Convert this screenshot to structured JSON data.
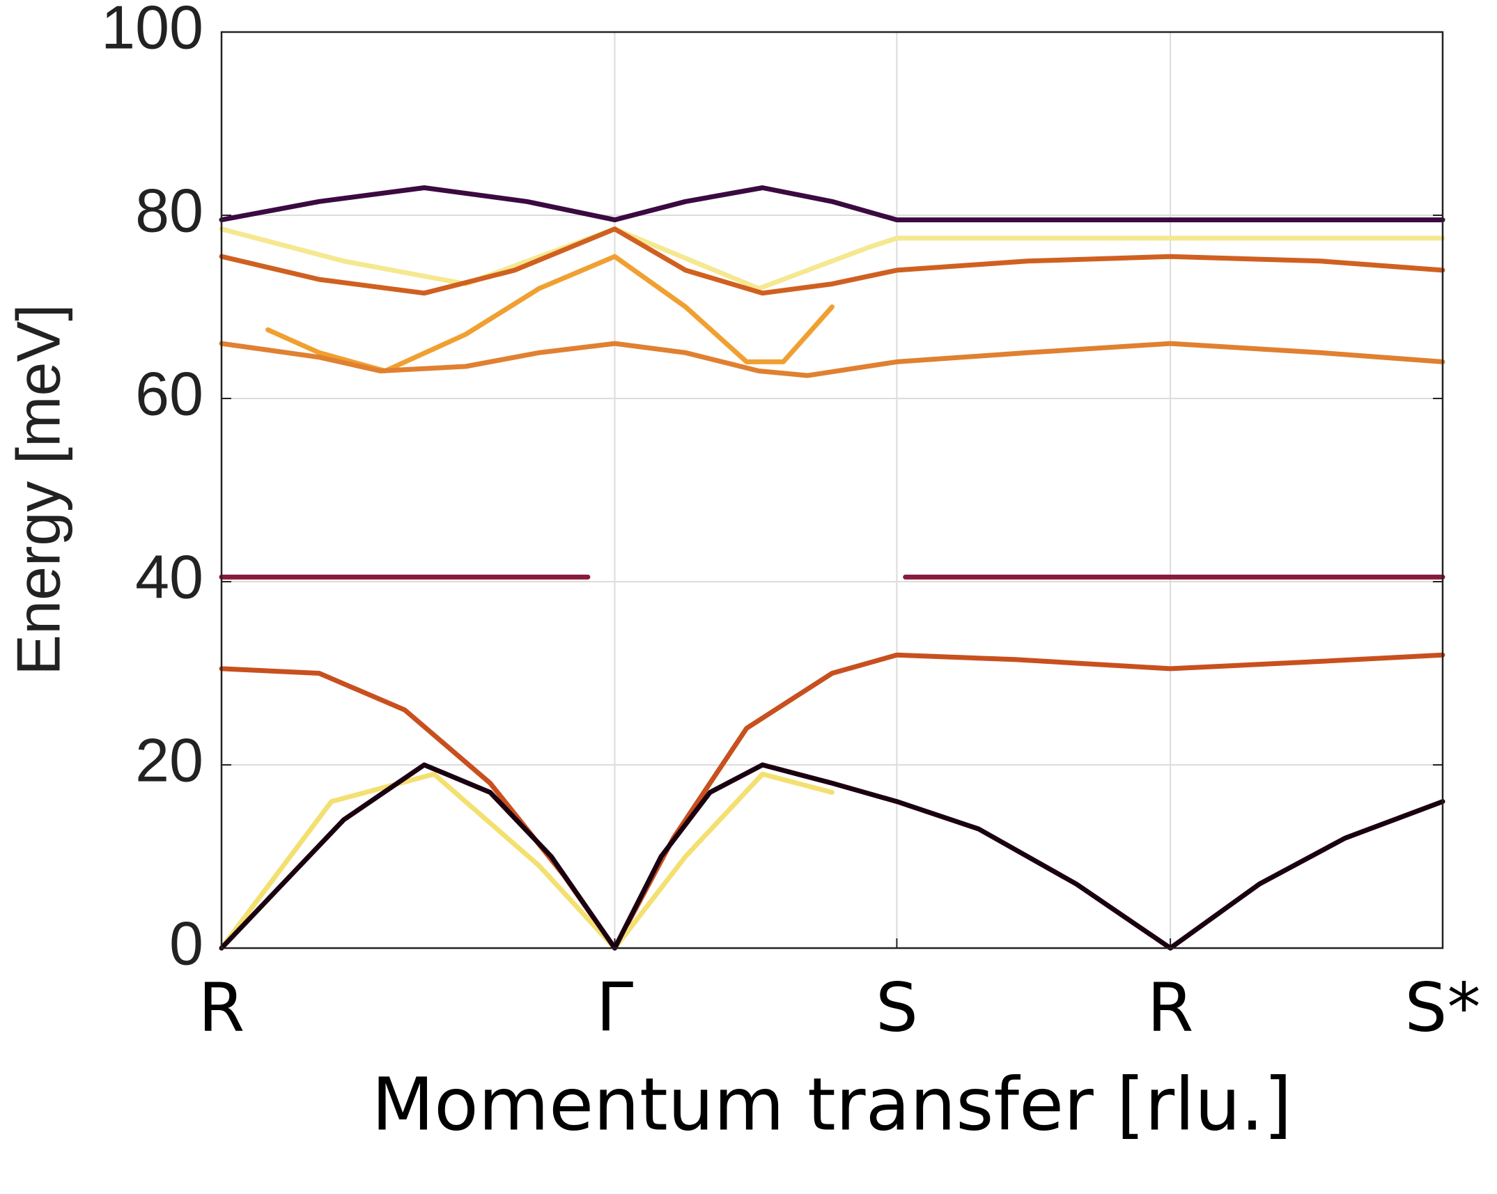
{
  "chart_data": {
    "type": "line",
    "xlabel": "Momentum transfer [rlu.]",
    "ylabel": "Energy [meV]",
    "xlim": [
      0,
      1
    ],
    "ylim": [
      0,
      100
    ],
    "yticks": [
      0,
      20,
      40,
      60,
      80,
      100
    ],
    "xticks": [
      {
        "value": 0,
        "label": "R"
      },
      {
        "value": 0.322,
        "label": "Γ"
      },
      {
        "value": 0.553,
        "label": "S"
      },
      {
        "value": 0.777,
        "label": "R"
      },
      {
        "value": 1,
        "label": "S*"
      }
    ],
    "grid": true,
    "series": [
      {
        "color": "#c8501e",
        "x": [
          0,
          0.08,
          0.15,
          0.22,
          0.28,
          0.322,
          0.37,
          0.43,
          0.5,
          0.553,
          0.65,
          0.777,
          0.9,
          1
        ],
        "values": [
          30.5,
          30,
          26,
          18,
          8,
          0,
          12,
          24,
          30,
          32,
          31.5,
          30.5,
          31.3,
          32
        ]
      },
      {
        "color": "#f3e070",
        "x": [
          0,
          0.09,
          0.174,
          0.26,
          0.322,
          0.38,
          0.443,
          0.5
        ],
        "values": [
          0,
          16,
          19,
          9,
          0,
          10,
          19,
          17
        ]
      },
      {
        "color": "#1a0010",
        "x": [
          0,
          0.05,
          0.1,
          0.166,
          0.22,
          0.27,
          0.322,
          0.36,
          0.4,
          0.443,
          0.5,
          0.553,
          0.62,
          0.7,
          0.777,
          0.85,
          0.92,
          1
        ],
        "values": [
          0,
          7,
          14,
          20,
          17,
          10,
          0,
          10,
          17,
          20,
          18,
          16,
          13,
          7,
          0,
          7,
          12,
          16
        ]
      },
      {
        "color": "#8a1a3a",
        "x": [
          0,
          0.15,
          0.3,
          0.322,
          0.56,
          0.7,
          1
        ],
        "values": [
          40.5,
          40.5,
          40.5,
          null,
          40.5,
          40.5,
          40.5
        ]
      },
      {
        "color": "#f5e890",
        "x": [
          0,
          0.1,
          0.2,
          0.322,
          0.44,
          0.53,
          0.553,
          0.777,
          1
        ],
        "values": [
          78.5,
          75,
          72.5,
          78.5,
          72,
          76.5,
          77.5,
          77.5,
          77.5
        ]
      },
      {
        "color": "#f0a030",
        "x": [
          0.322,
          0.26,
          0.2,
          0.134,
          0.08,
          0.038
        ],
        "values": [
          75.5,
          72,
          67,
          63,
          65,
          67.5
        ]
      },
      {
        "color": "#f0a030",
        "x": [
          0.322,
          0.38,
          0.43,
          0.46,
          0.5
        ],
        "values": [
          75.5,
          70,
          64,
          64,
          70
        ]
      },
      {
        "color": "#e08030",
        "x": [
          0,
          0.08,
          0.13,
          0.2,
          0.26,
          0.322,
          0.38,
          0.44,
          0.48,
          0.553,
          0.66,
          0.777,
          0.9,
          1
        ],
        "values": [
          66,
          64.5,
          63,
          63.5,
          65,
          66,
          65,
          63,
          62.5,
          64,
          65,
          66,
          65,
          64
        ]
      },
      {
        "color": "#d06020",
        "x": [
          0,
          0.08,
          0.166,
          0.24,
          0.322,
          0.38,
          0.443,
          0.5,
          0.553,
          0.66,
          0.777,
          0.9,
          1
        ],
        "values": [
          75.5,
          73,
          71.5,
          74,
          78.5,
          74,
          71.5,
          72.5,
          74,
          75,
          75.5,
          75,
          74
        ]
      },
      {
        "color": "#3a0a40",
        "x": [
          0,
          0.08,
          0.166,
          0.25,
          0.322,
          0.38,
          0.443,
          0.5,
          0.553,
          0.777,
          1
        ],
        "values": [
          79.5,
          81.5,
          83,
          81.5,
          79.5,
          81.5,
          83,
          81.5,
          79.5,
          79.5,
          79.5
        ]
      }
    ]
  }
}
